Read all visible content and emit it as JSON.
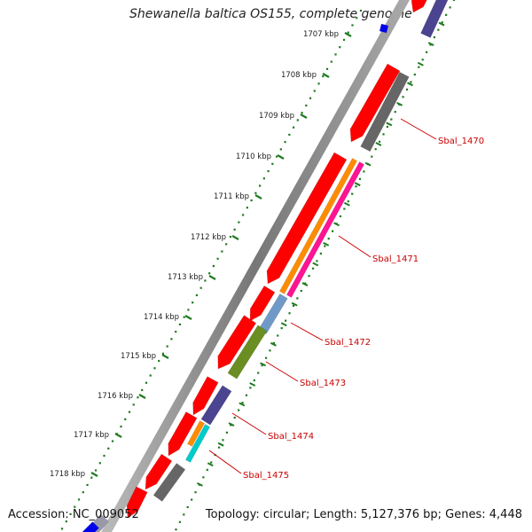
{
  "title": "Shewanella baltica OS155, complete genome",
  "accession": "Accession: NC_009052",
  "summary": "Topology: circular; Length: 5,127,376 bp; Genes: 4,448",
  "scale": {
    "tick_labels": [
      "1707 kbp",
      "1708 kbp",
      "1709 kbp",
      "1710 kbp",
      "1711 kbp",
      "1712 kbp",
      "1713 kbp",
      "1714 kbp",
      "1715 kbp",
      "1716 kbp",
      "1717 kbp",
      "1718 kbp"
    ],
    "color": "#1f7a1f"
  },
  "genes": [
    {
      "label": "Sbal_1470"
    },
    {
      "label": "Sbal_1471"
    },
    {
      "label": "Sbal_1472"
    },
    {
      "label": "Sbal_1473"
    },
    {
      "label": "Sbal_1474"
    },
    {
      "label": "Sbal_1475"
    }
  ],
  "colors": {
    "gene_label": "#cc0000",
    "backbone": "#888888",
    "red_feature": "#ff0000",
    "gray_feature": "#666666",
    "purple_feature": "#4b4490",
    "orange_feature": "#ff8c00",
    "magenta_feature": "#ff1493",
    "steelblue_feature": "#6f9ac8",
    "olive_feature": "#6b8e23",
    "cyan_feature": "#00cccc",
    "blue_feature": "#0000ee"
  }
}
